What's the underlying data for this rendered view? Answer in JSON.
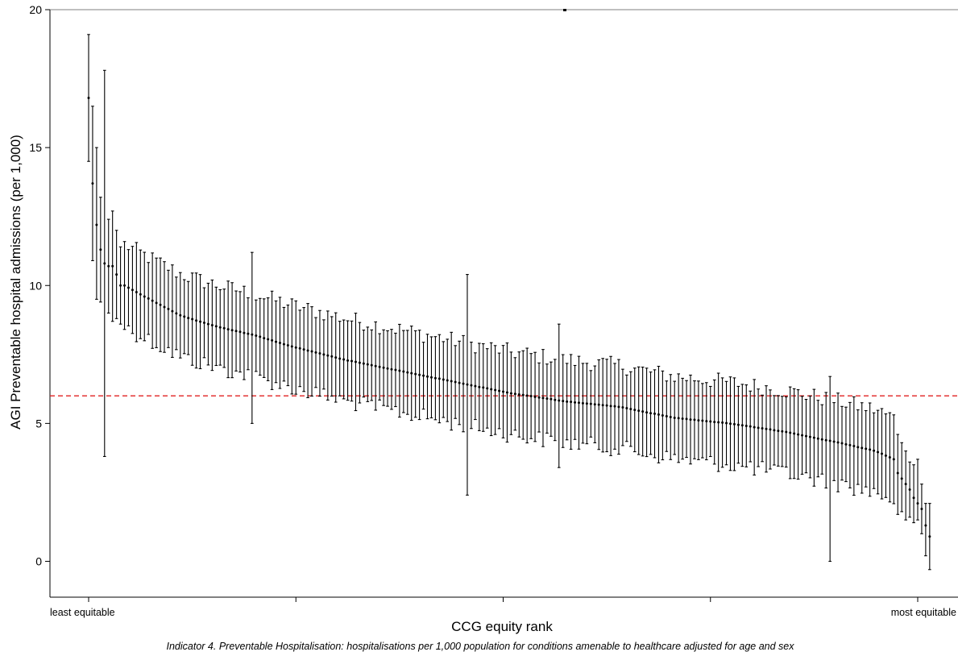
{
  "chart_data": {
    "type": "scatter",
    "subtype": "ranked point estimates with confidence interval error bars",
    "xlabel": "CCG equity rank",
    "ylabel": "AGI Preventable hospital admissions (per 1,000)",
    "caption": "Indicator 4. Preventable Hospitalisation: hospitalisations per 1,000 population for conditions amenable to healthcare adjusted for age and sex",
    "x_tick_labels": {
      "first": "least equitable",
      "last": "most equitable"
    },
    "n_points": 209,
    "ylim": [
      -1.3,
      20
    ],
    "yticks": [
      "0",
      "5",
      "10",
      "15",
      "20"
    ],
    "reference_line": {
      "value": 6.0,
      "color": "#e02020",
      "style": "dashed"
    },
    "points": [
      {
        "y": 16.8,
        "lo": 14.5,
        "hi": 19.1
      },
      {
        "y": 13.7,
        "lo": 10.9,
        "hi": 16.5
      },
      {
        "y": 12.2,
        "lo": 9.5,
        "hi": 15.0
      },
      {
        "y": 11.3,
        "lo": 9.4,
        "hi": 13.2
      },
      {
        "y": 10.8,
        "lo": 3.8,
        "hi": 17.8
      },
      {
        "y": 10.7,
        "lo": 9.0,
        "hi": 12.4
      },
      {
        "y": 10.7,
        "lo": 8.7,
        "hi": 12.7
      },
      {
        "y": 10.4,
        "lo": 8.8,
        "hi": 12.0
      },
      {
        "y": 10.0,
        "lo": 8.6,
        "hi": 11.4
      }
    ],
    "trend": {
      "anchors": [
        [
          9,
          10.0
        ],
        [
          20,
          9.6
        ],
        [
          40,
          8.9
        ],
        [
          60,
          8.5
        ],
        [
          80,
          8.2
        ],
        [
          100,
          7.8
        ],
        [
          130,
          7.3
        ],
        [
          160,
          6.9
        ],
        [
          190,
          6.5
        ],
        [
          220,
          6.1
        ],
        [
          250,
          5.8
        ],
        [
          280,
          5.6
        ],
        [
          310,
          5.2
        ],
        [
          340,
          5.0
        ],
        [
          370,
          4.7
        ],
        [
          400,
          4.3
        ],
        [
          420,
          4.0
        ],
        [
          430,
          3.7
        ]
      ],
      "n_trend_points": 194,
      "ci_halfwidth_range": [
        1.2,
        1.8
      ],
      "extra_wide": [
        {
          "i": 41,
          "lo": 5.0,
          "hi": 11.2
        },
        {
          "i": 95,
          "lo": 2.4,
          "hi": 10.4
        },
        {
          "i": 118,
          "lo": 3.4,
          "hi": 8.6
        },
        {
          "i": 186,
          "lo": 0.0,
          "hi": 6.7
        }
      ]
    },
    "tail": [
      {
        "y": 3.2,
        "lo": 1.7,
        "hi": 4.6
      },
      {
        "y": 3.0,
        "lo": 1.8,
        "hi": 4.3
      },
      {
        "y": 2.8,
        "lo": 1.5,
        "hi": 4.0
      },
      {
        "y": 2.6,
        "lo": 1.6,
        "hi": 3.6
      },
      {
        "y": 2.3,
        "lo": 1.4,
        "hi": 3.5
      },
      {
        "y": 2.1,
        "lo": 1.5,
        "hi": 3.7
      },
      {
        "y": 1.9,
        "lo": 1.0,
        "hi": 2.8
      },
      {
        "y": 1.3,
        "lo": 0.2,
        "hi": 2.1
      },
      {
        "y": 0.9,
        "lo": -0.3,
        "hi": 2.1
      }
    ]
  }
}
